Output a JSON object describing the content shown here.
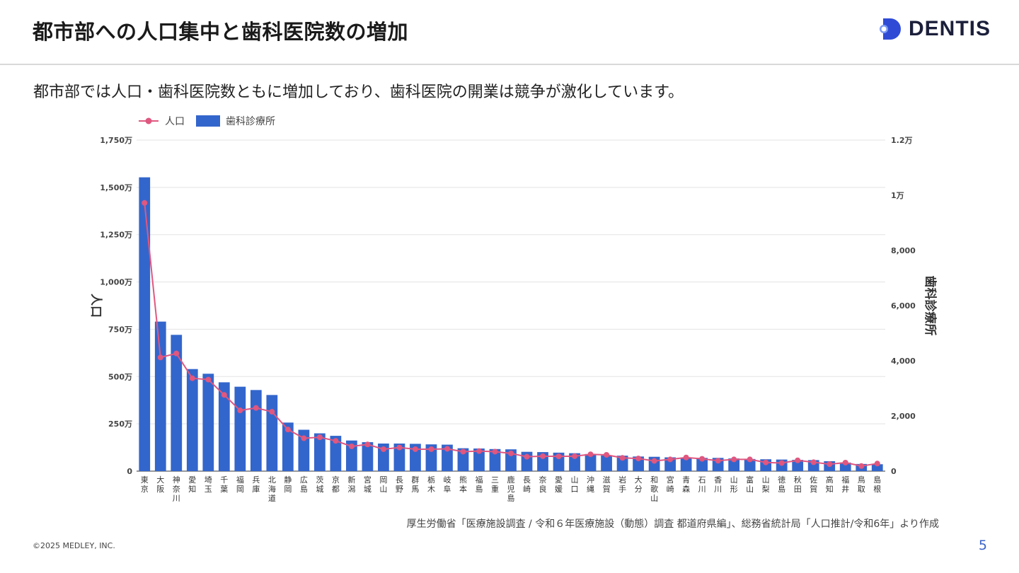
{
  "slide": {
    "title": "都市部への人口集中と歯科医院数の増加",
    "subtitle": "都市部では人口・歯科医院数ともに増加しており、歯科医院の開業は競争が激化しています。",
    "logo_text": "DENTIS",
    "source": "厚生労働省「医療施設調査 / 令和６年医療施設（動態）調査 都道府県編」、総務省統計局「人口推計/令和6年」より作成",
    "copyright": "©2025 MEDLEY, INC.",
    "page_number": "5"
  },
  "colors": {
    "bar": "#3366cc",
    "line": "#e0577f",
    "accent": "#3a63c8",
    "logo": "#1b1f3a"
  },
  "chart_data": {
    "type": "bar+line",
    "categories": [
      "東京",
      "大阪",
      "神奈川",
      "愛知",
      "埼玉",
      "千葉",
      "福岡",
      "兵庫",
      "北海道",
      "静岡",
      "広島",
      "茨城",
      "京都",
      "新潟",
      "宮城",
      "岡山",
      "長野",
      "群馬",
      "栃木",
      "岐阜",
      "熊本",
      "福島",
      "三重",
      "鹿児島",
      "長崎",
      "奈良",
      "愛媛",
      "山口",
      "沖縄",
      "滋賀",
      "岩手",
      "大分",
      "和歌山",
      "宮崎",
      "青森",
      "石川",
      "香川",
      "山形",
      "富山",
      "山梨",
      "徳島",
      "秋田",
      "佐賀",
      "高知",
      "福井",
      "鳥取",
      "島根"
    ],
    "series": [
      {
        "name": "人口",
        "type": "line",
        "axis": "left",
        "unit": "万人",
        "values": [
          1418,
          601,
          622,
          491,
          484,
          403,
          321,
          334,
          314,
          220,
          174,
          179,
          160,
          131,
          141,
          116,
          125,
          116,
          116,
          118,
          103,
          106,
          103,
          94,
          76,
          79,
          78,
          79,
          89,
          86,
          70,
          67,
          54,
          62,
          72,
          65,
          55,
          62,
          62,
          46,
          43,
          57,
          47,
          37,
          45,
          27,
          40
        ]
      },
      {
        "name": "歯科診療所",
        "type": "bar",
        "axis": "right",
        "unit": "施設",
        "values": [
          10650,
          5420,
          4940,
          3700,
          3530,
          3220,
          3060,
          2940,
          2760,
          1760,
          1500,
          1370,
          1280,
          1110,
          1050,
          1000,
          1000,
          990,
          970,
          960,
          830,
          820,
          800,
          790,
          700,
          690,
          670,
          650,
          620,
          570,
          560,
          530,
          520,
          500,
          490,
          480,
          480,
          460,
          440,
          430,
          420,
          410,
          400,
          360,
          310,
          260,
          250
        ]
      }
    ],
    "legend": [
      "人口",
      "歯科診療所"
    ],
    "legend_position": "top-left",
    "left_axis": {
      "label": "人口",
      "min": 0,
      "max": 1750,
      "ticks": [
        "0",
        "250万",
        "500万",
        "750万",
        "1,000万",
        "1,250万",
        "1,500万",
        "1,750万"
      ]
    },
    "right_axis": {
      "label": "歯科診療所",
      "min": 0,
      "max": 12000,
      "ticks": [
        "0",
        "2,000",
        "4,000",
        "6,000",
        "8,000",
        "1万",
        "1.2万"
      ]
    }
  }
}
